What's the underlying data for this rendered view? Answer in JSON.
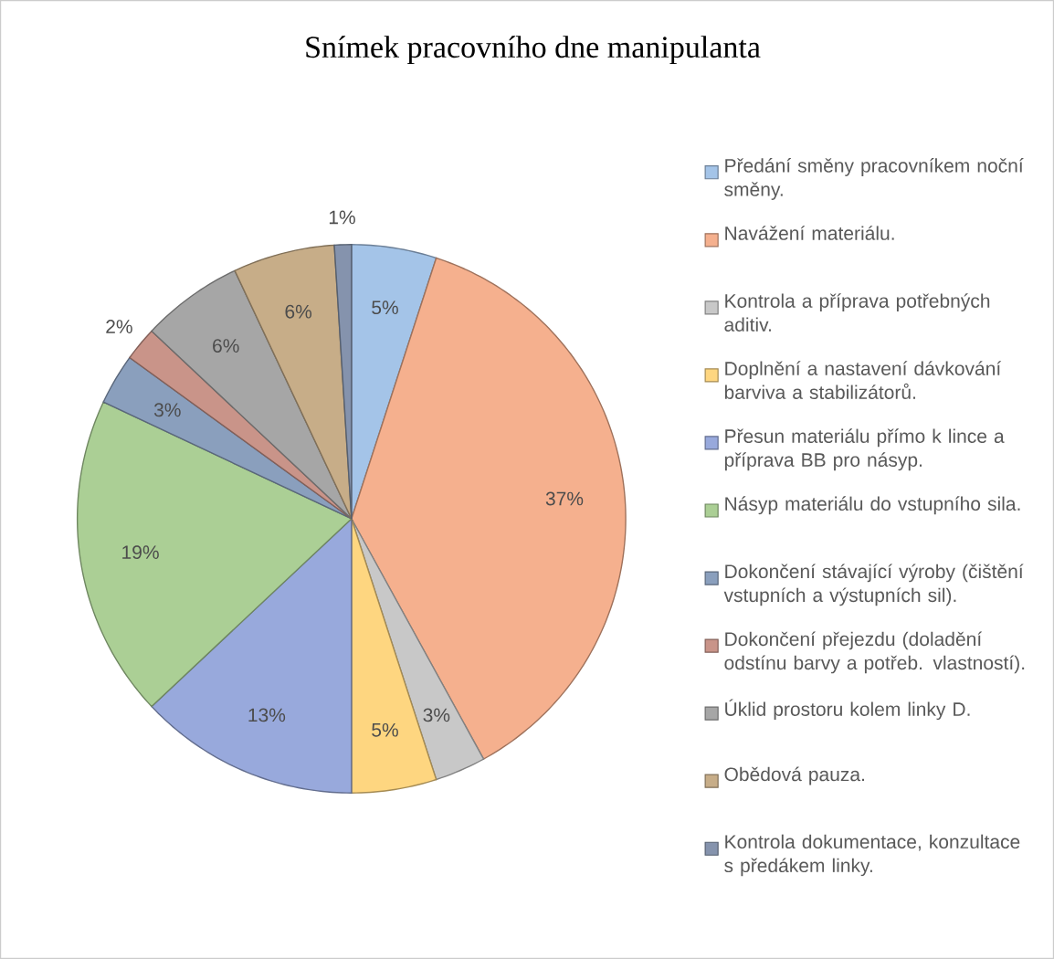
{
  "chart_data": {
    "type": "pie",
    "title": "Snímek pracovního dne manipulanta",
    "categories": [
      "Předání směny pracovníkem noční směny.",
      "Navážení materiálu.",
      "Kontrola a příprava potřebných aditiv.",
      "Doplnění a nastavení dávkování barviva a stabilizátorů.",
      "Přesun materiálu přímo k lince a příprava BB pro násyp.",
      "Násyp materiálu do vstupního sila.",
      "Dokončení stávající výroby (čištění vstupních a výstupních sil).",
      "Dokončení přejezdu (doladění odstínu barvy a potřeb. vlastností).",
      "Úklid prostoru kolem linky D.",
      "Obědová pauza.",
      "Kontrola dokumentace, konzultace s předákem linky."
    ],
    "values": [
      5,
      37,
      3,
      5,
      13,
      19,
      3,
      2,
      6,
      6,
      1
    ],
    "value_labels": [
      "5%",
      "37%",
      "3%",
      "5%",
      "13%",
      "19%",
      "3%",
      "2%",
      "6%",
      "6%",
      "1%"
    ],
    "colors": [
      "#a4c4e8",
      "#f5b08e",
      "#c8c8c8",
      "#fed680",
      "#98a9dc",
      "#abcf95",
      "#8a9fbd",
      "#c99489",
      "#a6a6a6",
      "#c7ad88",
      "#8593ad"
    ],
    "legend": "right"
  }
}
